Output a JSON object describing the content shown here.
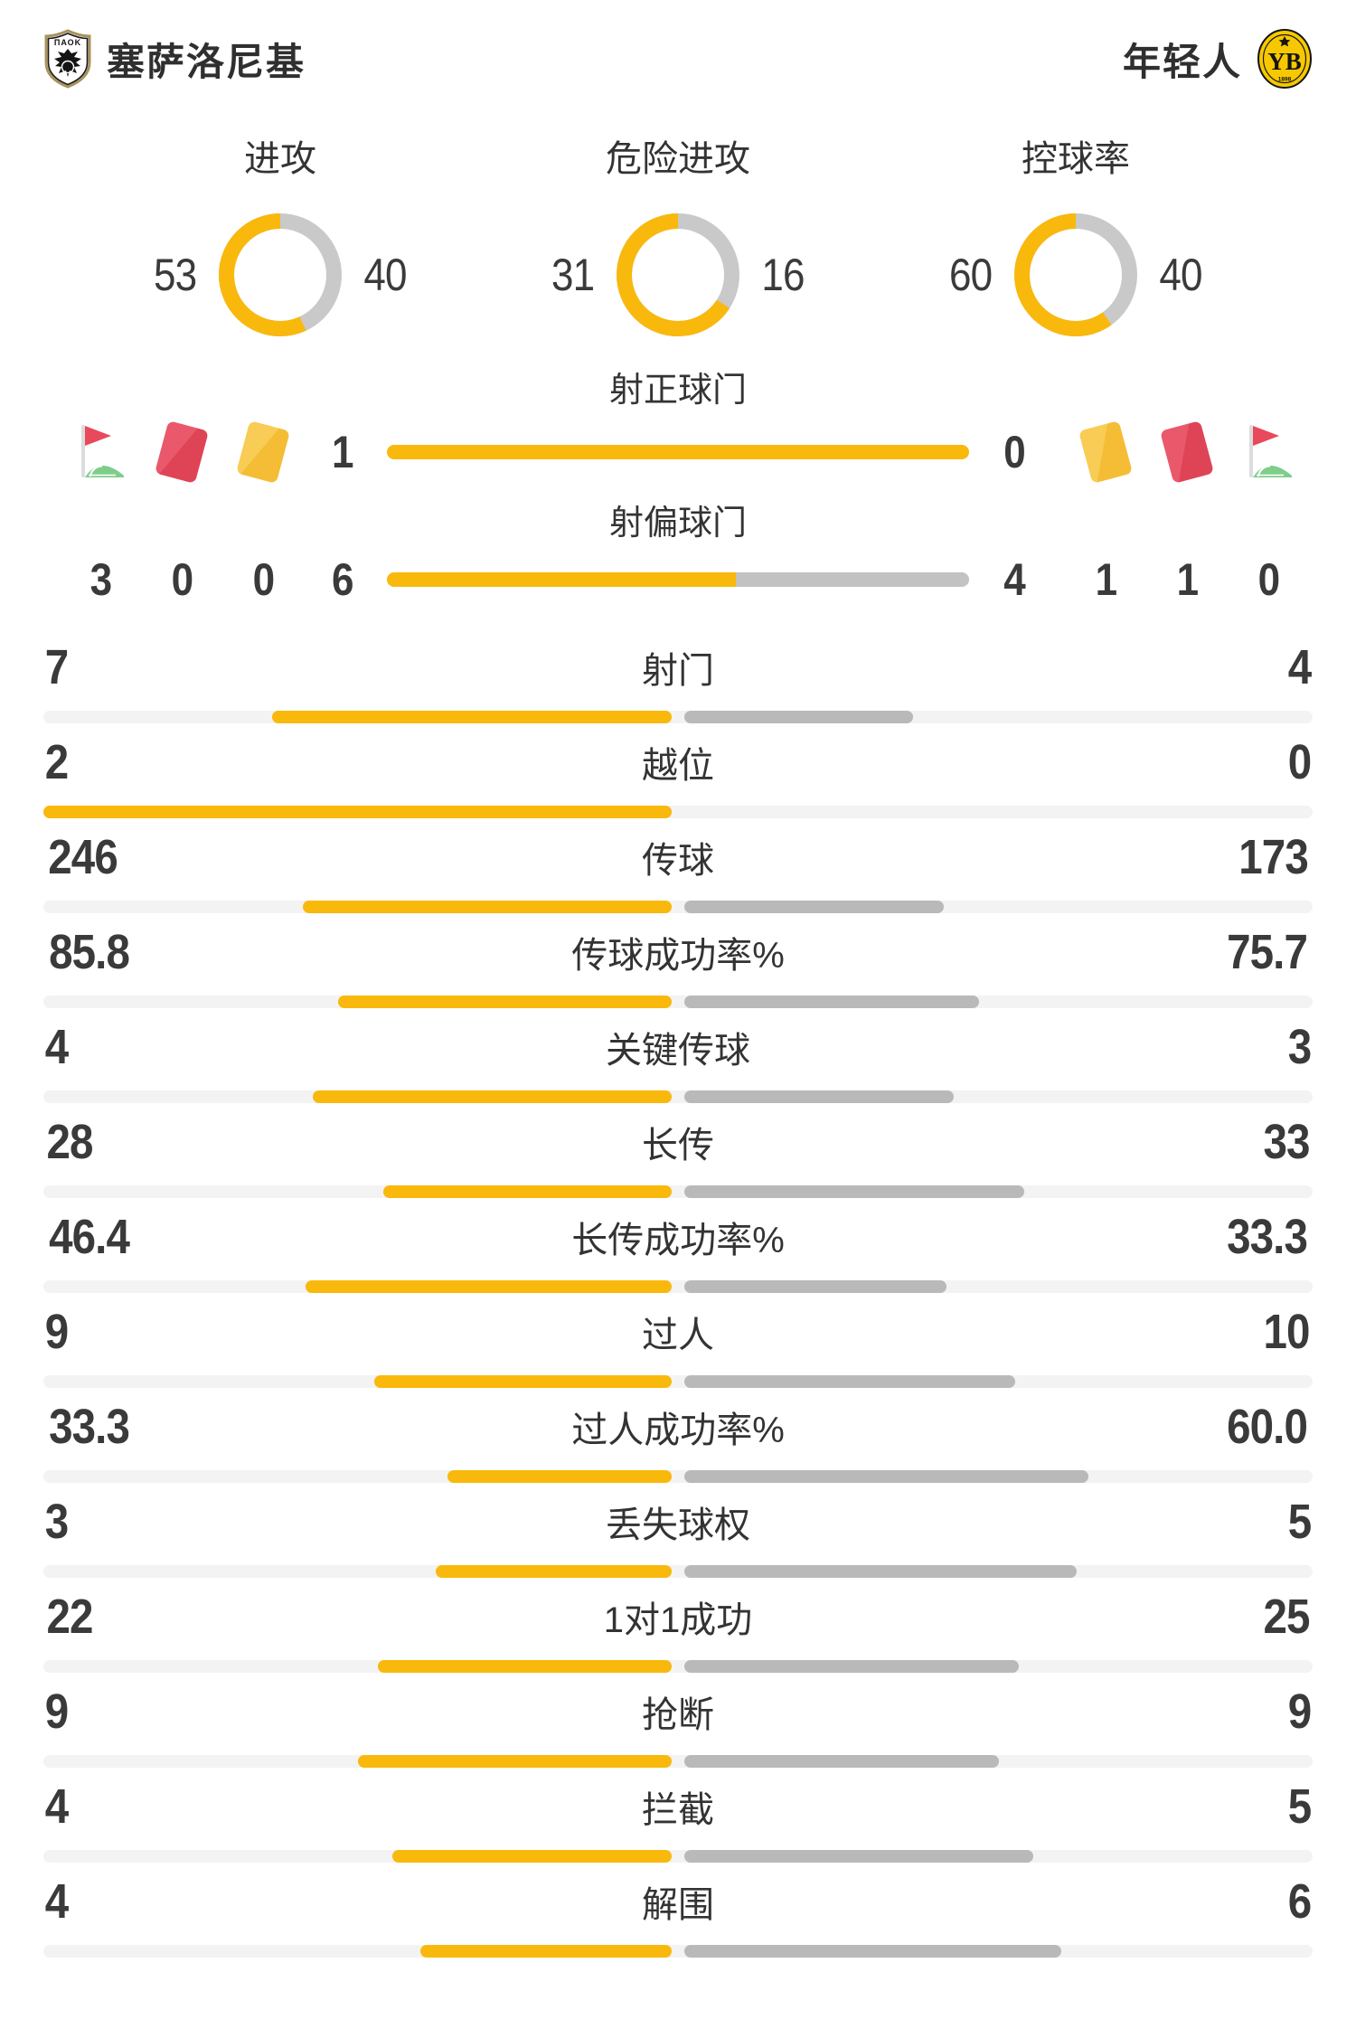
{
  "header": {
    "home": {
      "name": "塞萨洛尼基",
      "logo": "paok-crest"
    },
    "away": {
      "name": "年轻人",
      "logo": "young-boys-crest"
    }
  },
  "accents": {
    "home_bar": "#F9B80C",
    "away_bar": "#B9B9B9",
    "track": "#F3F3F3",
    "red_card": "#DF4456",
    "yellow_card": "#F5BD35",
    "corner_green": "#7FCD8B",
    "text_dark": "#3A3A3A"
  },
  "donuts": [
    {
      "title": "进攻",
      "home": 53,
      "away": 40
    },
    {
      "title": "危险进攻",
      "home": 31,
      "away": 16
    },
    {
      "title": "控球率",
      "home": 60,
      "away": 40
    }
  ],
  "discipline": {
    "home": {
      "icons": [
        "corner-flag",
        "red-card",
        "yellow-card"
      ],
      "counts": [
        "3",
        "0",
        "0"
      ]
    },
    "away": {
      "icons": [
        "yellow-card",
        "red-card",
        "corner-flag"
      ],
      "counts": [
        "1",
        "1",
        "0"
      ]
    }
  },
  "shot_bars": [
    {
      "label": "射正球门",
      "home": 1,
      "away": 0
    },
    {
      "label": "射偏球门",
      "home": 6,
      "away": 4
    }
  ],
  "stats": [
    {
      "label": "射门",
      "home": "7",
      "away": "4"
    },
    {
      "label": "越位",
      "home": "2",
      "away": "0"
    },
    {
      "label": "传球",
      "home": "246",
      "away": "173"
    },
    {
      "label": "传球成功率%",
      "home": "85.8",
      "away": "75.7"
    },
    {
      "label": "关键传球",
      "home": "4",
      "away": "3"
    },
    {
      "label": "长传",
      "home": "28",
      "away": "33"
    },
    {
      "label": "长传成功率%",
      "home": "46.4",
      "away": "33.3"
    },
    {
      "label": "过人",
      "home": "9",
      "away": "10"
    },
    {
      "label": "过人成功率%",
      "home": "33.3",
      "away": "60.0"
    },
    {
      "label": "丢失球权",
      "home": "3",
      "away": "5"
    },
    {
      "label": "1对1成功",
      "home": "22",
      "away": "25"
    },
    {
      "label": "抢断",
      "home": "9",
      "away": "9"
    },
    {
      "label": "拦截",
      "home": "4",
      "away": "5"
    },
    {
      "label": "解围",
      "home": "4",
      "away": "6"
    }
  ]
}
